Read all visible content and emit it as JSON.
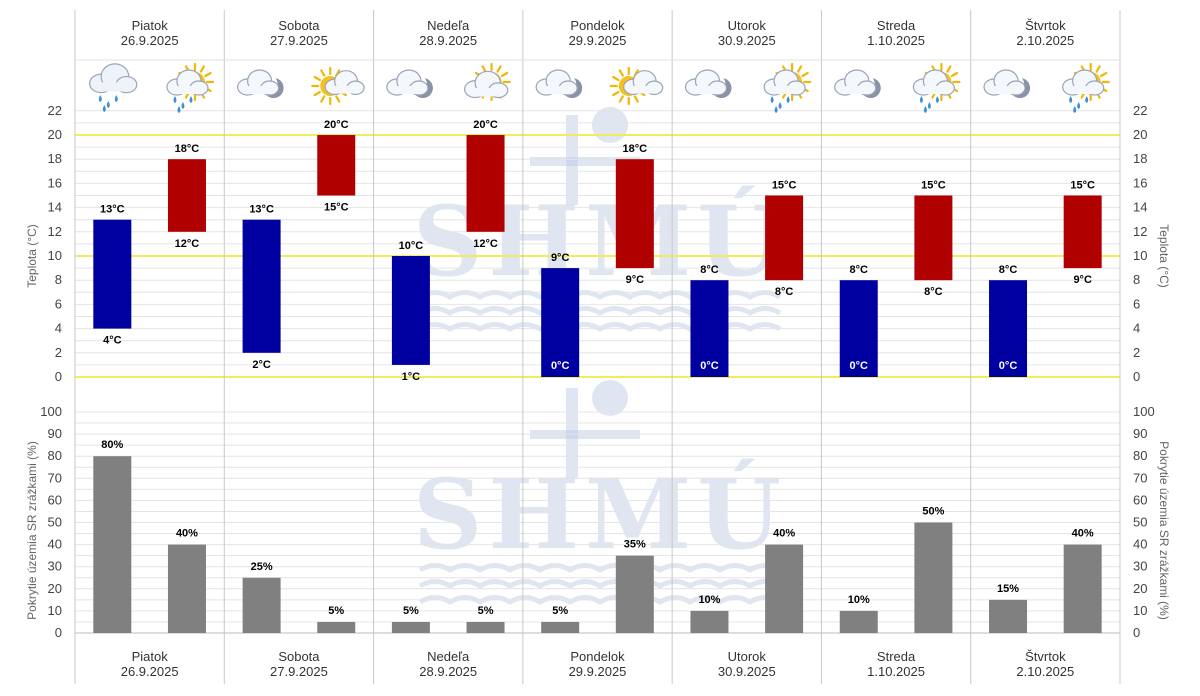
{
  "days": [
    {
      "name": "Piatok",
      "date": "26.9.2025",
      "night_icon": "cloud-rain-icon",
      "day_icon": "partly-sunny-rain-icon"
    },
    {
      "name": "Sobota",
      "date": "27.9.2025",
      "night_icon": "cloud-moon-icon",
      "day_icon": "partly-sunny-icon"
    },
    {
      "name": "Nedeľa",
      "date": "28.9.2025",
      "night_icon": "cloud-moon-icon",
      "day_icon": "partly-sunny-cloud-icon"
    },
    {
      "name": "Pondelok",
      "date": "29.9.2025",
      "night_icon": "cloud-moon-icon",
      "day_icon": "partly-sunny-icon"
    },
    {
      "name": "Utorok",
      "date": "30.9.2025",
      "night_icon": "cloud-moon-icon",
      "day_icon": "partly-sunny-rain-icon"
    },
    {
      "name": "Streda",
      "date": "1.10.2025",
      "night_icon": "cloud-moon-icon",
      "day_icon": "partly-sunny-rain-icon"
    },
    {
      "name": "Štvrtok",
      "date": "2.10.2025",
      "night_icon": "cloud-moon-icon",
      "day_icon": "partly-sunny-rain-icon"
    }
  ],
  "colors": {
    "night_bar": "#0000a0",
    "day_bar": "#b00000",
    "precip_bar": "#808080",
    "threshold_line": "#f2ec5a",
    "grid": "#e4e4e4",
    "separator": "#c8c8c8"
  },
  "chart_data": [
    {
      "type": "bar",
      "ylabel": "Teplota (°C)",
      "ylim": [
        0,
        22
      ],
      "yticks": [
        0,
        2,
        4,
        6,
        8,
        10,
        12,
        14,
        16,
        18,
        20,
        22
      ],
      "threshold_lines": [
        0,
        10,
        20
      ],
      "categories": [
        "Piatok 26.9.2025",
        "Sobota 27.9.2025",
        "Nedeľa 28.9.2025",
        "Pondelok 29.9.2025",
        "Utorok 30.9.2025",
        "Streda 1.10.2025",
        "Štvrtok 2.10.2025"
      ],
      "series": [
        {
          "low": [
            4,
            2,
            1,
            0,
            0,
            0,
            0
          ],
          "high": [
            13,
            13,
            10,
            9,
            8,
            8,
            8
          ],
          "low_labels": [
            "4°C",
            "2°C",
            "1°C",
            "0°C",
            "0°C",
            "0°C",
            "0°C"
          ],
          "high_labels": [
            "13°C",
            "13°C",
            "10°C",
            "9°C",
            "8°C",
            "8°C",
            "8°C"
          ]
        },
        {
          "low": [
            12,
            15,
            12,
            9,
            8,
            8,
            9
          ],
          "high": [
            18,
            20,
            20,
            18,
            15,
            15,
            15
          ],
          "low_labels": [
            "12°C",
            "15°C",
            "12°C",
            "9°C",
            "8°C",
            "8°C",
            "9°C"
          ],
          "high_labels": [
            "18°C",
            "20°C",
            "20°C",
            "18°C",
            "15°C",
            "15°C",
            "15°C"
          ]
        }
      ]
    },
    {
      "type": "bar",
      "ylabel": "Pokrytie územia SR zrážkami (%)",
      "ylim": [
        0,
        100
      ],
      "yticks": [
        0,
        10,
        20,
        30,
        40,
        50,
        60,
        70,
        80,
        90,
        100
      ],
      "categories": [
        "Piatok 26.9.2025",
        "Sobota 27.9.2025",
        "Nedeľa 28.9.2025",
        "Pondelok 29.9.2025",
        "Utorok 30.9.2025",
        "Streda 1.10.2025",
        "Štvrtok 2.10.2025"
      ],
      "series": [
        {
          "values": [
            80,
            25,
            5,
            5,
            10,
            10,
            15
          ],
          "labels": [
            "80%",
            "25%",
            "5%",
            "5%",
            "10%",
            "10%",
            "15%"
          ]
        },
        {
          "values": [
            40,
            5,
            5,
            35,
            40,
            50,
            40
          ],
          "labels": [
            "40%",
            "5%",
            "5%",
            "35%",
            "40%",
            "50%",
            "40%"
          ]
        }
      ]
    }
  ],
  "watermark": "SHMÚ"
}
